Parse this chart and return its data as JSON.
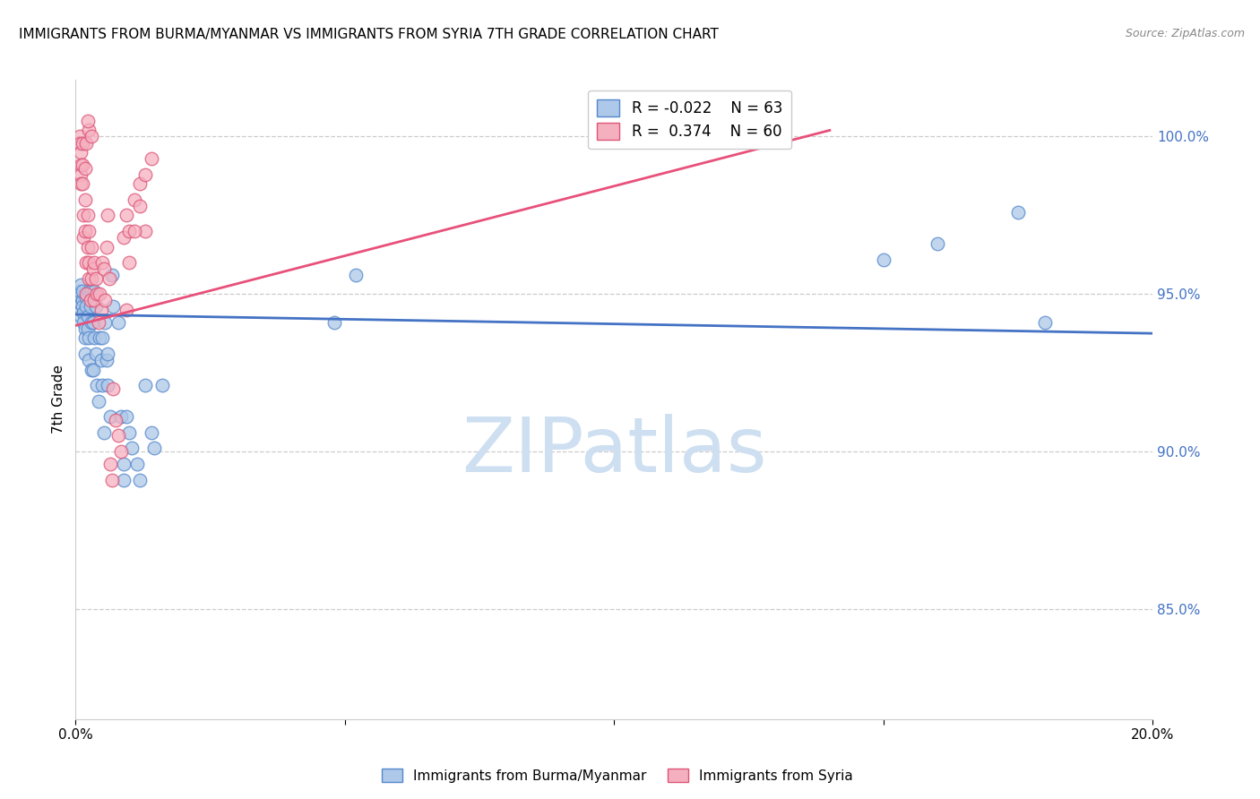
{
  "title": "IMMIGRANTS FROM BURMA/MYANMAR VS IMMIGRANTS FROM SYRIA 7TH GRADE CORRELATION CHART",
  "source": "Source: ZipAtlas.com",
  "ylabel": "7th Grade",
  "xlim": [
    0.0,
    0.2
  ],
  "ylim": [
    0.815,
    1.018
  ],
  "legend_blue_r": "-0.022",
  "legend_blue_n": "63",
  "legend_pink_r": "0.374",
  "legend_pink_n": "60",
  "blue_color": "#adc8e8",
  "pink_color": "#f5b0c0",
  "blue_edge_color": "#5588cc",
  "pink_edge_color": "#dd5577",
  "blue_line_color": "#4472c4",
  "pink_line_color": "#e8507a",
  "watermark_color": "#cddff0",
  "ytick_color": "#4472c4",
  "blue_points_x": [
    0.0008,
    0.0008,
    0.001,
    0.001,
    0.001,
    0.0012,
    0.0012,
    0.0012,
    0.0015,
    0.0015,
    0.0018,
    0.0018,
    0.0018,
    0.002,
    0.002,
    0.0022,
    0.0022,
    0.0025,
    0.0025,
    0.0025,
    0.0028,
    0.003,
    0.003,
    0.003,
    0.0032,
    0.0032,
    0.0035,
    0.0035,
    0.0038,
    0.0038,
    0.004,
    0.0042,
    0.0045,
    0.0048,
    0.005,
    0.005,
    0.0052,
    0.0055,
    0.0058,
    0.006,
    0.006,
    0.0065,
    0.0068,
    0.007,
    0.008,
    0.0085,
    0.009,
    0.009,
    0.0095,
    0.01,
    0.0105,
    0.0115,
    0.012,
    0.013,
    0.014,
    0.0145,
    0.016,
    0.048,
    0.052,
    0.15,
    0.16,
    0.175,
    0.18
  ],
  "blue_points_y": [
    0.949,
    0.951,
    0.953,
    0.947,
    0.943,
    0.948,
    0.951,
    0.946,
    0.944,
    0.941,
    0.939,
    0.936,
    0.931,
    0.949,
    0.946,
    0.943,
    0.939,
    0.951,
    0.936,
    0.929,
    0.946,
    0.941,
    0.926,
    0.951,
    0.941,
    0.926,
    0.951,
    0.936,
    0.946,
    0.931,
    0.921,
    0.916,
    0.936,
    0.929,
    0.936,
    0.921,
    0.906,
    0.941,
    0.929,
    0.921,
    0.931,
    0.911,
    0.956,
    0.946,
    0.941,
    0.911,
    0.896,
    0.891,
    0.911,
    0.906,
    0.901,
    0.896,
    0.891,
    0.921,
    0.906,
    0.901,
    0.921,
    0.941,
    0.956,
    0.961,
    0.966,
    0.976,
    0.941
  ],
  "pink_points_x": [
    0.0008,
    0.0008,
    0.001,
    0.001,
    0.001,
    0.001,
    0.0012,
    0.0012,
    0.0012,
    0.0015,
    0.0015,
    0.0018,
    0.0018,
    0.0018,
    0.002,
    0.002,
    0.0022,
    0.0022,
    0.0025,
    0.0025,
    0.0025,
    0.0028,
    0.003,
    0.003,
    0.0032,
    0.0035,
    0.0035,
    0.0038,
    0.004,
    0.0042,
    0.0045,
    0.0048,
    0.005,
    0.0052,
    0.0055,
    0.0058,
    0.006,
    0.0062,
    0.0065,
    0.0068,
    0.007,
    0.0075,
    0.008,
    0.0085,
    0.009,
    0.0095,
    0.01,
    0.011,
    0.012,
    0.013,
    0.0095,
    0.01,
    0.011,
    0.012,
    0.013,
    0.014,
    0.002,
    0.0025,
    0.0022,
    0.003
  ],
  "pink_points_y": [
    1.0,
    0.998,
    0.995,
    0.991,
    0.988,
    0.985,
    0.998,
    0.991,
    0.985,
    0.975,
    0.968,
    0.99,
    0.98,
    0.97,
    0.96,
    0.95,
    0.975,
    0.965,
    0.955,
    0.97,
    0.96,
    0.948,
    0.965,
    0.955,
    0.958,
    0.948,
    0.96,
    0.955,
    0.95,
    0.941,
    0.95,
    0.945,
    0.96,
    0.958,
    0.948,
    0.965,
    0.975,
    0.955,
    0.896,
    0.891,
    0.92,
    0.91,
    0.905,
    0.9,
    0.968,
    0.975,
    0.97,
    0.98,
    0.985,
    0.97,
    0.945,
    0.96,
    0.97,
    0.978,
    0.988,
    0.993,
    0.998,
    1.002,
    1.005,
    1.0
  ],
  "blue_trend_x": [
    0.0,
    0.2
  ],
  "blue_trend_y": [
    0.9435,
    0.9375
  ],
  "pink_trend_x": [
    0.0,
    0.14
  ],
  "pink_trend_y": [
    0.94,
    1.002
  ],
  "ytick_vals": [
    0.85,
    0.9,
    0.95,
    1.0
  ],
  "ytick_labels": [
    "85.0%",
    "90.0%",
    "95.0%",
    "100.0%"
  ],
  "xtick_vals": [
    0.0,
    0.05,
    0.1,
    0.15,
    0.2
  ],
  "xtick_labels": [
    "0.0%",
    "",
    "",
    "",
    "20.0%"
  ]
}
